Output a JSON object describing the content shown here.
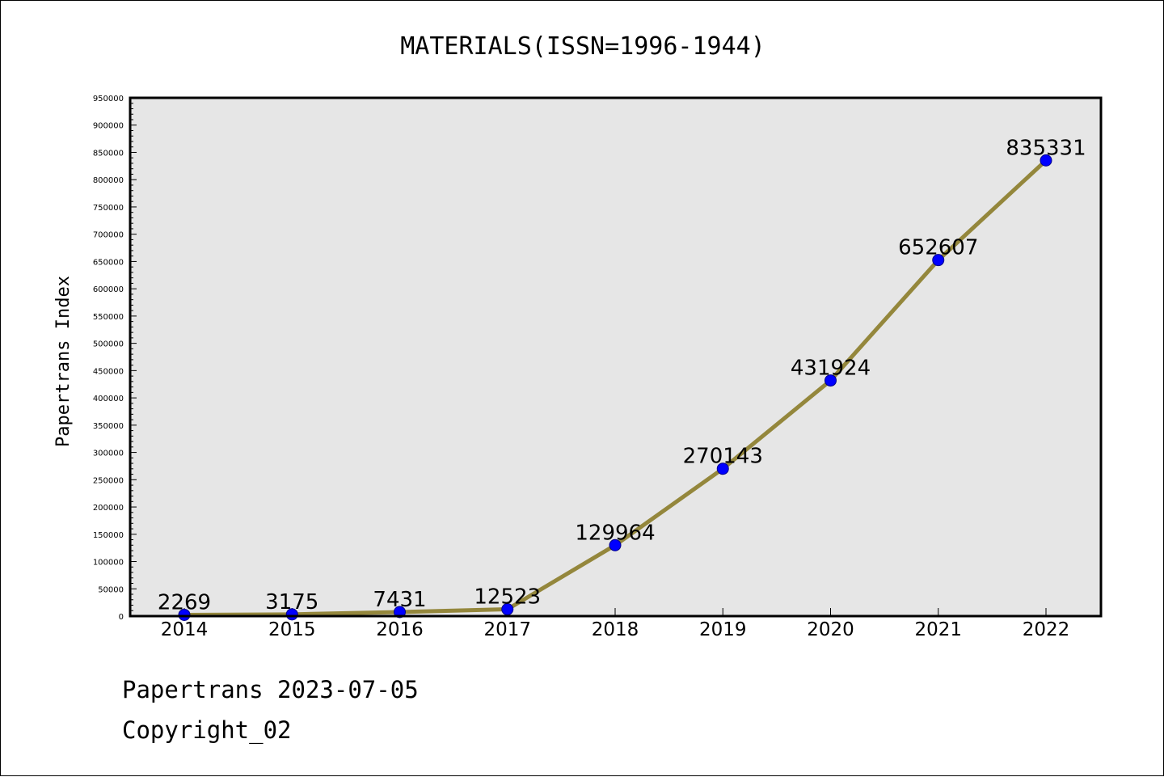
{
  "chart_data": {
    "type": "line",
    "title": "MATERIALS(ISSN=1996-1944)",
    "xlabel": "",
    "ylabel": "Papertrans Index",
    "categories": [
      "2014",
      "2015",
      "2016",
      "2017",
      "2018",
      "2019",
      "2020",
      "2021",
      "2022"
    ],
    "series": [
      {
        "values": [
          2269,
          3175,
          7431,
          12523,
          129964,
          270143,
          431924,
          652607,
          835331
        ]
      }
    ],
    "ylim": [
      0,
      950000
    ],
    "yticks": [
      0,
      50000,
      100000,
      150000,
      200000,
      250000,
      300000,
      350000,
      400000,
      450000,
      500000,
      550000,
      600000,
      650000,
      700000,
      750000,
      800000,
      850000,
      900000,
      950000
    ],
    "grid": false,
    "legend": "none",
    "data_labels": true,
    "colors": {
      "line": "#94873c",
      "marker": "#0000ff",
      "plot_background": "#e6e6e6"
    }
  },
  "footer": {
    "date_line": "Papertrans 2023-07-05",
    "copyright_line": "Copyright_02"
  }
}
